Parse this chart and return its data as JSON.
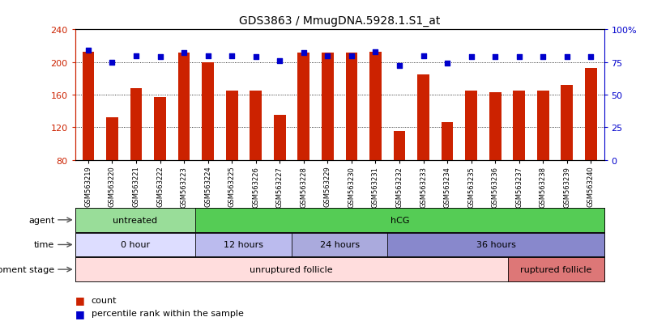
{
  "title": "GDS3863 / MmugDNA.5928.1.S1_at",
  "samples": [
    "GSM563219",
    "GSM563220",
    "GSM563221",
    "GSM563222",
    "GSM563223",
    "GSM563224",
    "GSM563225",
    "GSM563226",
    "GSM563227",
    "GSM563228",
    "GSM563229",
    "GSM563230",
    "GSM563231",
    "GSM563232",
    "GSM563233",
    "GSM563234",
    "GSM563235",
    "GSM563236",
    "GSM563237",
    "GSM563238",
    "GSM563239",
    "GSM563240"
  ],
  "counts": [
    213,
    132,
    168,
    157,
    212,
    200,
    165,
    165,
    135,
    212,
    212,
    212,
    213,
    115,
    185,
    126,
    165,
    163,
    165,
    165,
    172,
    193
  ],
  "percentiles": [
    84,
    75,
    80,
    79,
    82,
    80,
    80,
    79,
    76,
    82,
    80,
    80,
    83,
    72,
    80,
    74,
    79,
    79,
    79,
    79,
    79,
    79
  ],
  "ylim_left": [
    80,
    240
  ],
  "ylim_right": [
    0,
    100
  ],
  "yticks_left": [
    80,
    120,
    160,
    200,
    240
  ],
  "yticks_right": [
    0,
    25,
    50,
    75,
    100
  ],
  "ytick_labels_right": [
    "0",
    "25",
    "50",
    "75",
    "100%"
  ],
  "bar_color": "#cc2200",
  "dot_color": "#0000cc",
  "bar_width": 0.5,
  "grid_lines": [
    120,
    160,
    200
  ],
  "agent_groups": [
    {
      "label": "untreated",
      "start": 0,
      "end": 5,
      "color": "#99dd99"
    },
    {
      "label": "hCG",
      "start": 5,
      "end": 22,
      "color": "#55cc55"
    }
  ],
  "time_groups": [
    {
      "label": "0 hour",
      "start": 0,
      "end": 5,
      "color": "#ddddff"
    },
    {
      "label": "12 hours",
      "start": 5,
      "end": 9,
      "color": "#bbbbee"
    },
    {
      "label": "24 hours",
      "start": 9,
      "end": 13,
      "color": "#aaaadd"
    },
    {
      "label": "36 hours",
      "start": 13,
      "end": 22,
      "color": "#8888cc"
    }
  ],
  "dev_groups": [
    {
      "label": "unruptured follicle",
      "start": 0,
      "end": 18,
      "color": "#ffdddd"
    },
    {
      "label": "ruptured follicle",
      "start": 18,
      "end": 22,
      "color": "#dd7777"
    }
  ],
  "row_labels": [
    "agent",
    "time",
    "development stage"
  ],
  "legend_count_label": "count",
  "legend_pct_label": "percentile rank within the sample",
  "background_color": "#ffffff",
  "axis_color_left": "#cc2200",
  "axis_color_right": "#0000cc"
}
